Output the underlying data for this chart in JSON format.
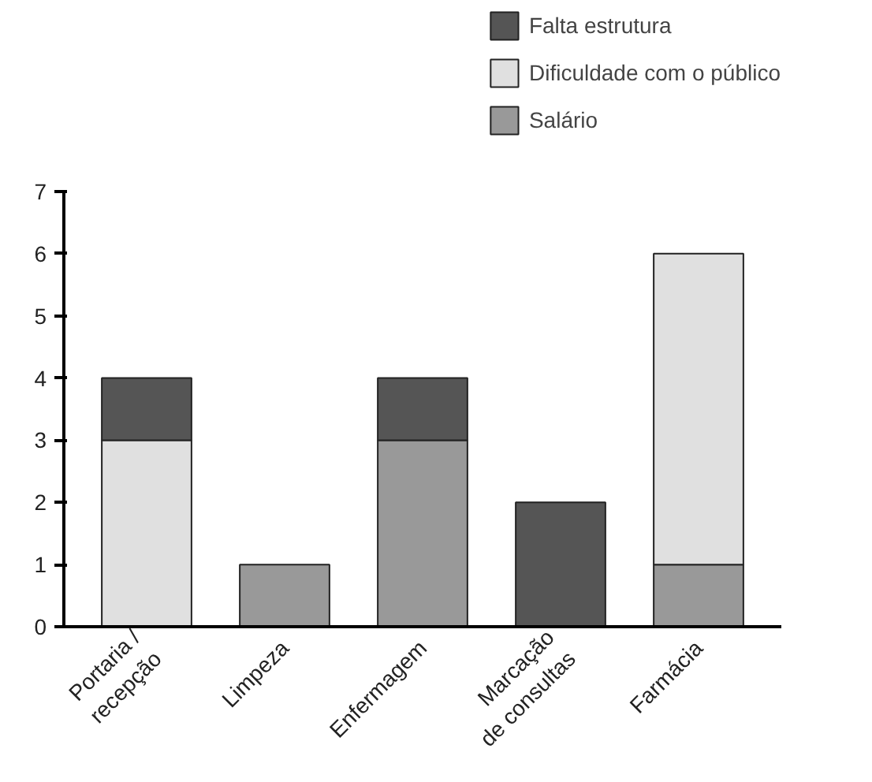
{
  "chart_data": {
    "type": "bar",
    "stacked": true,
    "categories": [
      "Portaria /\nrecepção",
      "Limpeza",
      "Enfermagem",
      "Marcação\nde consultas",
      "Farmácia"
    ],
    "series": [
      {
        "name": "Salário",
        "color": "#999999",
        "values": [
          0,
          1,
          3,
          0,
          1
        ]
      },
      {
        "name": "Dificuldade com o público",
        "color": "#e0e0e0",
        "values": [
          3,
          0,
          0,
          0,
          5
        ]
      },
      {
        "name": "Falta estrutura",
        "color": "#555555",
        "values": [
          1,
          0,
          1,
          2,
          0
        ]
      }
    ],
    "ylim": [
      0,
      7
    ],
    "yticks": [
      0,
      1,
      2,
      3,
      4,
      5,
      6,
      7
    ],
    "grid": false,
    "legend": "top right"
  }
}
